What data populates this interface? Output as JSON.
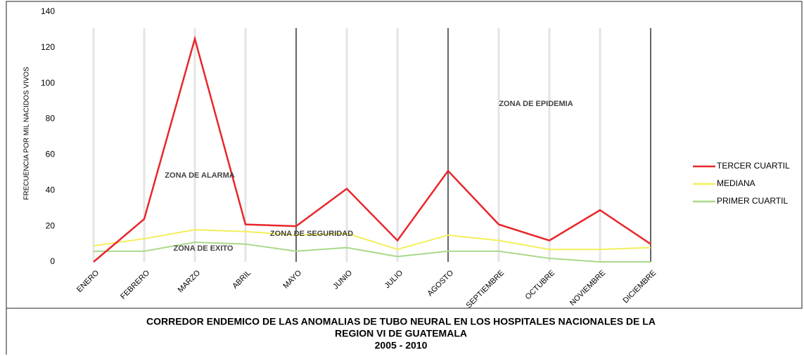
{
  "chart_data": {
    "type": "line",
    "title": [
      "CORREDOR ENDEMICO DE LAS ANOMALIAS DE TUBO NEURAL EN LOS HOSPITALES NACIONALES DE LA",
      "REGION VI DE GUATEMALA"
    ],
    "subtitle": "2005 - 2010",
    "y_label": "FRECUENCIA POR MIL NACIDOS VIVOS",
    "categories": [
      "ENERO",
      "FEBRERO",
      "MARZO",
      "ABRIL",
      "MAYO",
      "JUNIO",
      "JULIO",
      "AGOSTO",
      "SEPTIEMBRE",
      "OCTUBRE",
      "NOVIEMBRE",
      "DICIEMBRE"
    ],
    "series": [
      {
        "name": "TERCER CUARTIL",
        "color": "#e8262b",
        "values": [
          0,
          24,
          125,
          21,
          20,
          41,
          12,
          51,
          21,
          12,
          29,
          10
        ]
      },
      {
        "name": "MEDIANA",
        "color": "#f2ee5a",
        "values": [
          9,
          13,
          18,
          17,
          15,
          16,
          7,
          15,
          12,
          7,
          7,
          8
        ]
      },
      {
        "name": "PRIMER CUARTIL",
        "color": "#a8d98a",
        "values": [
          6,
          6,
          11,
          10,
          6,
          8,
          3,
          6,
          6,
          2,
          0,
          0
        ]
      }
    ],
    "annotations": [
      "ZONA DE ALARMA",
      "ZONA DE SEGURIDAD",
      "ZONA DE EXITO",
      "ZONA DE EPIDEMIA"
    ],
    "ylim": [
      0,
      140
    ],
    "yticks": [
      0,
      20,
      40,
      60,
      80,
      100,
      120,
      140
    ],
    "legend": "right"
  }
}
